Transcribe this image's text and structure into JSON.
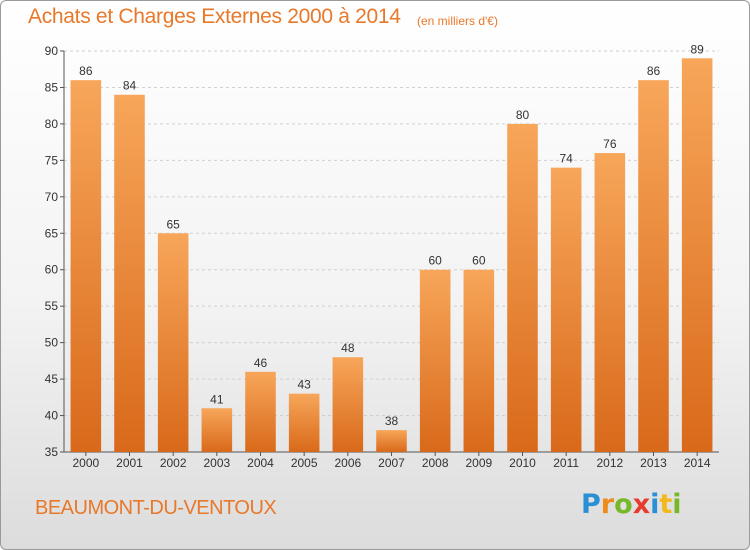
{
  "chart_data": {
    "type": "bar",
    "title": "Achats et Charges Externes 2000 à 2014",
    "subtitle": "(en milliers d'€)",
    "categories": [
      "2000",
      "2001",
      "2002",
      "2003",
      "2004",
      "2005",
      "2006",
      "2007",
      "2008",
      "2009",
      "2010",
      "2011",
      "2012",
      "2013",
      "2014"
    ],
    "values": [
      86,
      84,
      65,
      41,
      46,
      43,
      48,
      38,
      60,
      60,
      80,
      74,
      76,
      86,
      89
    ],
    "ylim": [
      35,
      90
    ],
    "yticks": [
      35,
      40,
      45,
      50,
      55,
      60,
      65,
      70,
      75,
      80,
      85,
      90
    ],
    "grid": true,
    "xlabel": "",
    "ylabel": "",
    "bar_color_top": "#f7a65a",
    "bar_color_bottom": "#d9691a"
  },
  "commune": "BEAUMONT-DU-VENTOUX",
  "logo": {
    "letters": [
      "P",
      "r",
      "o",
      "x",
      "i",
      "t",
      "i"
    ],
    "colors": [
      "#2b8fd6",
      "#f08a1c",
      "#76b82a",
      "#e63b2e",
      "#2b8fd6",
      "#f2b81c",
      "#76b82a"
    ]
  },
  "colors": {
    "accent": "#e8782a",
    "grid": "#d0d0d0"
  }
}
